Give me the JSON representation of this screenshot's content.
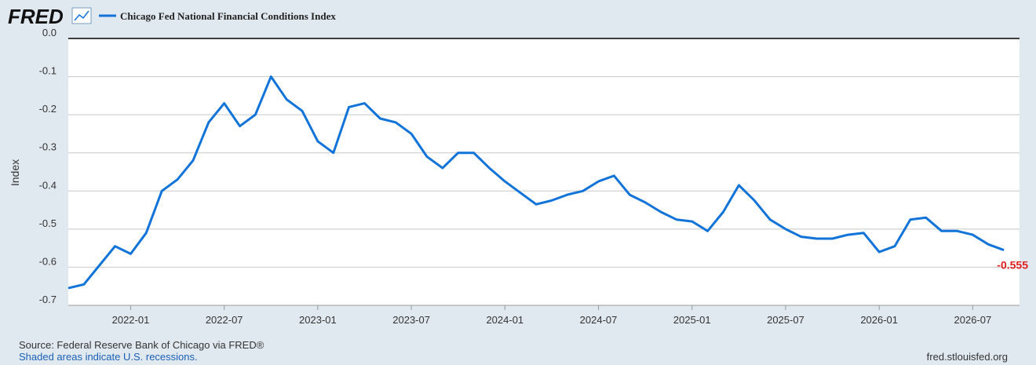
{
  "chart_data": {
    "type": "line",
    "logo": "FRED",
    "ylabel": "Index",
    "source": "Source: Federal Reserve Bank of Chicago via FRED®",
    "note": "Shaded areas indicate U.S. recessions.",
    "url": "fred.stlouisfed.org",
    "x": [
      "2021-09",
      "2021-10",
      "2021-11",
      "2021-12",
      "2022-01",
      "2022-02",
      "2022-03",
      "2022-04",
      "2022-05",
      "2022-06",
      "2022-07",
      "2022-08",
      "2022-09",
      "2022-10",
      "2022-11",
      "2022-12",
      "2023-01",
      "2023-02",
      "2023-03",
      "2023-04",
      "2023-05",
      "2023-06",
      "2023-07",
      "2023-08",
      "2023-09",
      "2023-10",
      "2023-11",
      "2023-12",
      "2024-01",
      "2024-02",
      "2024-03",
      "2024-04",
      "2024-05",
      "2024-06",
      "2024-07",
      "2024-08",
      "2024-09",
      "2024-10",
      "2024-11",
      "2024-12",
      "2025-01",
      "2025-02",
      "2025-03",
      "2025-04",
      "2025-05",
      "2025-06",
      "2025-07",
      "2025-08",
      "2025-09",
      "2025-10",
      "2025-11",
      "2025-12",
      "2026-01",
      "2026-02",
      "2026-03",
      "2026-04",
      "2026-05",
      "2026-06",
      "2026-07",
      "2026-08",
      "2026-09"
    ],
    "series": [
      {
        "name": "Chicago Fed National Financial Conditions Index",
        "color": "#1273d8",
        "values": [
          -0.655,
          -0.645,
          -0.595,
          -0.545,
          -0.565,
          -0.51,
          -0.4,
          -0.37,
          -0.32,
          -0.22,
          -0.17,
          -0.23,
          -0.2,
          -0.1,
          -0.16,
          -0.19,
          -0.27,
          -0.3,
          -0.18,
          -0.17,
          -0.21,
          -0.22,
          -0.25,
          -0.31,
          -0.34,
          -0.3,
          -0.3,
          -0.34,
          -0.375,
          -0.405,
          -0.435,
          -0.425,
          -0.41,
          -0.4,
          -0.375,
          -0.36,
          -0.41,
          -0.43,
          -0.455,
          -0.475,
          -0.48,
          -0.505,
          -0.455,
          -0.385,
          -0.425,
          -0.475,
          -0.5,
          -0.52,
          -0.525,
          -0.525,
          -0.515,
          -0.51,
          -0.56,
          -0.545,
          -0.475,
          -0.47,
          -0.505,
          -0.505,
          -0.515,
          -0.54,
          -0.555
        ]
      }
    ],
    "last_label_color": "#e0201f",
    "xlim": [
      "2021-09",
      "2026-10"
    ],
    "xticks": [
      "2022-01",
      "2022-07",
      "2023-01",
      "2023-07",
      "2024-01",
      "2024-07",
      "2025-01",
      "2025-07",
      "2026-01",
      "2026-07"
    ],
    "ylim": [
      -0.7,
      0
    ],
    "yticks": [
      {
        "value": 0,
        "label": "0.0"
      },
      -0.1,
      -0.2,
      -0.3,
      -0.4,
      -0.5,
      -0.6,
      -0.7
    ],
    "grid": true
  }
}
